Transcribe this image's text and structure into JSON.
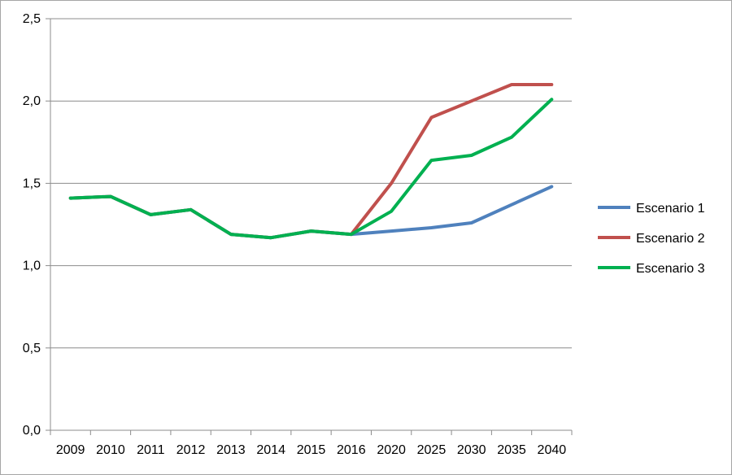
{
  "chart_data": {
    "type": "line",
    "categories": [
      "2009",
      "2010",
      "2011",
      "2012",
      "2013",
      "2014",
      "2015",
      "2016",
      "2020",
      "2025",
      "2030",
      "2035",
      "2040"
    ],
    "ylim": [
      0,
      2.5
    ],
    "yticks": [
      "0,0",
      "0,5",
      "1,0",
      "1,5",
      "2,0",
      "2,5"
    ],
    "grid": true,
    "legend_position": "right",
    "series": [
      {
        "name": "Escenario 1",
        "color": "#4f81bd",
        "values": [
          1.41,
          1.42,
          1.31,
          1.34,
          1.19,
          1.17,
          1.21,
          1.19,
          1.21,
          1.23,
          1.26,
          1.37,
          1.48
        ]
      },
      {
        "name": "Escenario 2",
        "color": "#c0504d",
        "values": [
          1.41,
          1.42,
          1.31,
          1.34,
          1.19,
          1.17,
          1.21,
          1.19,
          1.5,
          1.9,
          2.0,
          2.1,
          2.1
        ]
      },
      {
        "name": "Escenario 3",
        "color": "#00b050",
        "values": [
          1.41,
          1.42,
          1.31,
          1.34,
          1.19,
          1.17,
          1.21,
          1.19,
          1.33,
          1.64,
          1.67,
          1.78,
          2.01
        ]
      }
    ]
  }
}
